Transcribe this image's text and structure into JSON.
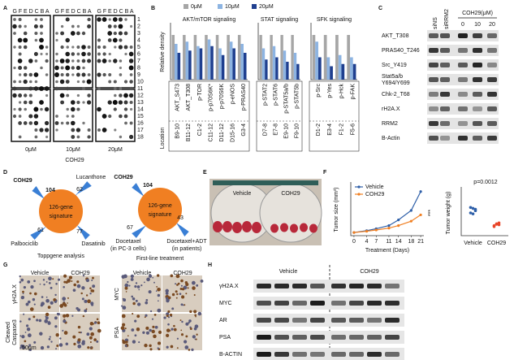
{
  "figure": {
    "panel_labels": [
      "A",
      "B",
      "C",
      "D",
      "E",
      "F",
      "G",
      "H"
    ],
    "A": {
      "column_letters": "G F E D C B A",
      "row_numbers": [
        "1",
        "2",
        "3",
        "4",
        "5",
        "6",
        "7",
        "8",
        "9",
        "10",
        "11",
        "12",
        "13",
        "14",
        "15",
        "16",
        "17",
        "18"
      ],
      "membranes": [
        "0μM",
        "10μM",
        "20μM"
      ],
      "drug": "COH29"
    },
    "C": {
      "lanes": [
        "siNS",
        "siRRM2"
      ],
      "drug_header": "COH29(μM)",
      "doses": [
        "0",
        "10",
        "20"
      ],
      "rows": [
        "AKT_T308",
        "PRAS40_T246",
        "Src_Y419",
        [
          "Stat5a/b",
          "Y694/Y699"
        ],
        "Chk-2_T68",
        "rH2A.X",
        "RRM2",
        "B-Actin"
      ]
    },
    "D": {
      "left": {
        "drug": "COH29",
        "drug_count": 104,
        "others": [
          {
            "name": [
              "Lucanthone"
            ],
            "count": 62
          },
          {
            "name": [
              "Palbociclib"
            ],
            "count": 61
          },
          {
            "name": [
              "Dasatinib"
            ],
            "count": 77
          }
        ],
        "center": [
          "126-gene",
          "signature"
        ],
        "caption": "Toppgene analysis"
      },
      "right": {
        "drug": "COH29",
        "drug_count": 104,
        "others": [
          {
            "name": [
              "Docetaxel",
              "(in PC-3 cells)"
            ],
            "count": 67
          },
          {
            "name": [
              "Docetaxel+ADT",
              "(in patients)"
            ],
            "count": 43
          }
        ],
        "center": [
          "126-gene",
          "signature"
        ],
        "caption": "First-line treatment"
      }
    },
    "E": {
      "labels": [
        "Vehicle",
        "COH29"
      ]
    },
    "G": {
      "left": {
        "headers": [
          "Vehicle",
          "COH29"
        ],
        "rows": [
          [
            "γH2A.X"
          ],
          [
            "Cleaved",
            "Caspase3"
          ]
        ],
        "scale": "50μm"
      },
      "right": {
        "headers": [
          "Vehicle",
          "COH29"
        ],
        "rows": [
          [
            "MYC"
          ],
          [
            "PSA"
          ]
        ]
      }
    },
    "H": {
      "headers": [
        "Vehicle",
        "COH29"
      ],
      "rows": [
        "γH2A.X",
        "MYC",
        "AR",
        "PSA",
        "B-ACTIN"
      ]
    }
  },
  "chart_data": [
    {
      "type": "bar",
      "ylabel": "Relative density",
      "location_label": "Location",
      "ylim": [
        0,
        1.2
      ],
      "series": [
        {
          "name": "0μM",
          "color": "#a6a6a6"
        },
        {
          "name": "10μM",
          "color": "#8db4e2"
        },
        {
          "name": "20μM",
          "color": "#1f3f8f"
        }
      ],
      "groups": [
        {
          "title": "AKT/mTOR signaling",
          "categories": [
            "AKT_S473",
            "AKT_T308",
            "p-TOR",
            "p-p70S6K*",
            "p-p70S6K",
            "p-eNOS",
            "p-PRAS40"
          ],
          "locations": [
            "B9-10",
            "B11-12",
            "C1-2",
            "C11-12",
            "D11-12",
            "D15-16",
            "G3-4"
          ],
          "series": [
            {
              "values": [
                1,
                1,
                1,
                1,
                1,
                1,
                1
              ]
            },
            {
              "values": [
                0.8,
                0.85,
                0.75,
                0.9,
                0.7,
                0.85,
                0.8
              ]
            },
            {
              "values": [
                0.6,
                0.65,
                0.7,
                0.75,
                0.55,
                0.7,
                0.6
              ]
            }
          ]
        },
        {
          "title": "STAT signaling",
          "categories": [
            "p-STAT2",
            "p-STAT6",
            "p-STAT5a/b",
            "p-STAT5b"
          ],
          "locations": [
            "D7-8",
            "E7-8",
            "E9-10",
            "F9-10"
          ],
          "series": [
            {
              "values": [
                1,
                1,
                1,
                1
              ]
            },
            {
              "values": [
                0.7,
                0.75,
                0.65,
                0.6
              ]
            },
            {
              "values": [
                0.45,
                0.5,
                0.4,
                0.35
              ]
            }
          ]
        },
        {
          "title": "SFK signaling",
          "categories": [
            "p-Src",
            "p-Yes",
            "p-Hck",
            "p-FAK"
          ],
          "locations": [
            "D1-2",
            "E3-4",
            "F1-2",
            "F5-6"
          ],
          "series": [
            {
              "values": [
                1,
                1,
                1,
                1
              ]
            },
            {
              "values": [
                0.85,
                0.5,
                0.55,
                0.5
              ]
            },
            {
              "values": [
                0.5,
                0.3,
                0.35,
                0.35
              ]
            }
          ]
        }
      ]
    },
    {
      "type": "line",
      "ylabel": "Tumor size (mm³)",
      "xlabel": "Treatment (Days)",
      "annotation": "***",
      "x": [
        0,
        4,
        7,
        11,
        14,
        18,
        21
      ],
      "xlim": [
        -1,
        22
      ],
      "xticks": [
        0,
        4,
        7,
        11,
        14,
        18,
        21
      ],
      "ylim": [
        0,
        800
      ],
      "series": [
        {
          "name": "Vehicle",
          "color": "#2e5fa8",
          "values": [
            50,
            80,
            110,
            160,
            250,
            400,
            700
          ]
        },
        {
          "name": "COH29",
          "color": "#f07f22",
          "values": [
            50,
            70,
            90,
            120,
            160,
            230,
            330
          ]
        }
      ]
    },
    {
      "type": "scatter",
      "ylabel": "Tumor weight (g)",
      "annotation": "p=0.0012",
      "ylim": [
        0,
        1
      ],
      "categories": [
        "Vehicle",
        "COH29"
      ],
      "colors": [
        "#2e5fa8",
        "#e8462a"
      ],
      "values": [
        [
          0.5,
          0.6,
          0.55,
          0.62,
          0.48,
          0.58
        ],
        [
          0.22,
          0.25,
          0.28,
          0.2,
          0.26,
          0.24
        ]
      ]
    }
  ]
}
